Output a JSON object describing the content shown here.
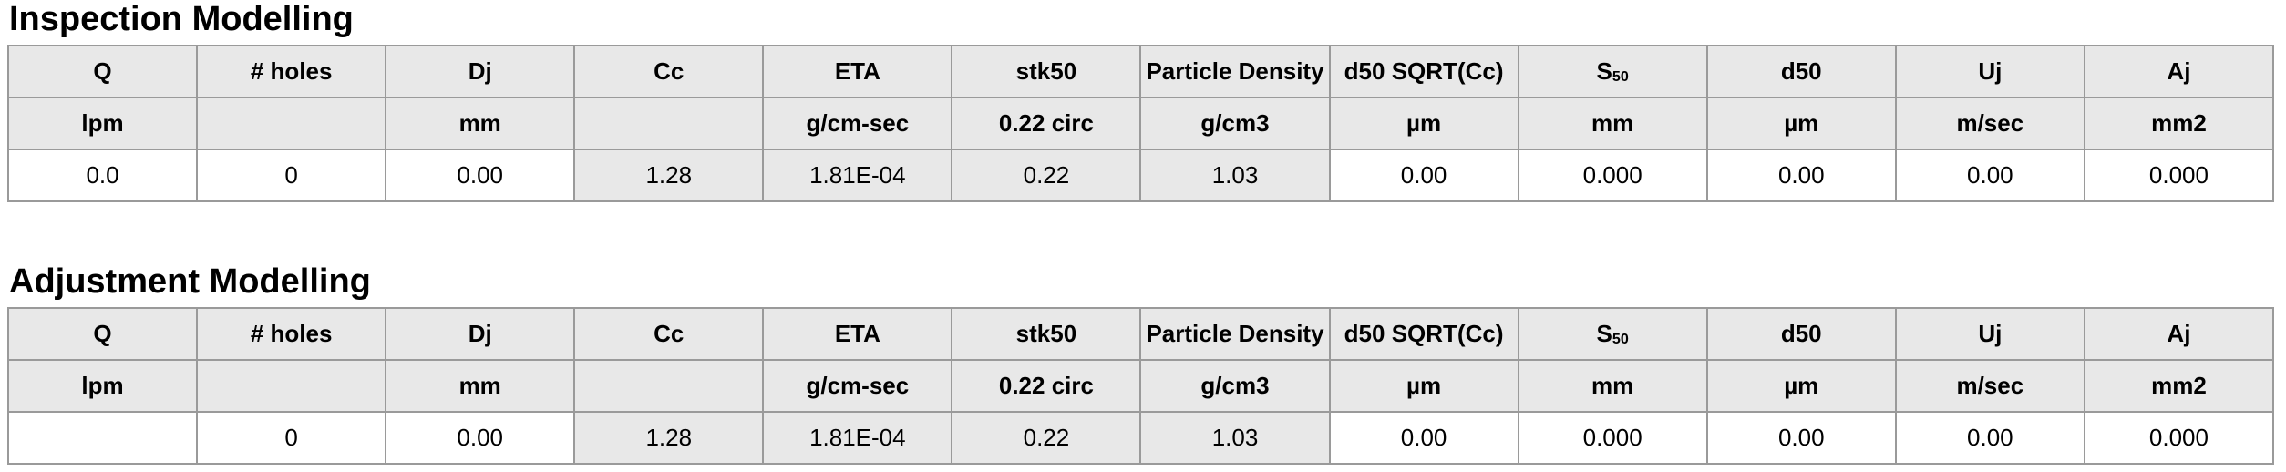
{
  "colors": {
    "cell_shaded_bg": "#e8e8e8",
    "cell_input_bg": "#ffffff",
    "border": "#9a9a9a",
    "text": "#000000"
  },
  "columns": [
    {
      "key": "q",
      "header": "Q",
      "unit": "lpm"
    },
    {
      "key": "num-holes",
      "header": "# holes",
      "unit": ""
    },
    {
      "key": "dj",
      "header": "Dj",
      "unit": "mm"
    },
    {
      "key": "cc",
      "header": "Cc",
      "unit": ""
    },
    {
      "key": "eta",
      "header": "ETA",
      "unit": "g/cm-sec"
    },
    {
      "key": "stk50",
      "header": "stk50",
      "unit": "0.22 circ"
    },
    {
      "key": "particle-density",
      "header": "Particle Density",
      "unit": "g/cm3"
    },
    {
      "key": "d50-sqrt-cc",
      "header": "d50 SQRT(Cc)",
      "unit": "µm"
    },
    {
      "key": "s50",
      "header": "S",
      "header_sub": "50",
      "unit": "mm"
    },
    {
      "key": "d50",
      "header": "d50",
      "unit": "µm"
    },
    {
      "key": "uj",
      "header": "Uj",
      "unit": "m/sec"
    },
    {
      "key": "aj",
      "header": "Aj",
      "unit": "mm2"
    }
  ],
  "tables": [
    {
      "title": "Inspection Modelling",
      "values": [
        "0.0",
        "0",
        "0.00",
        "1.28",
        "1.81E-04",
        "0.22",
        "1.03",
        "0.00",
        "0.000",
        "0.00",
        "0.00",
        "0.000"
      ],
      "shaded": [
        false,
        false,
        false,
        true,
        true,
        true,
        true,
        false,
        false,
        false,
        false,
        false
      ]
    },
    {
      "title": "Adjustment Modelling",
      "values": [
        "",
        "0",
        "0.00",
        "1.28",
        "1.81E-04",
        "0.22",
        "1.03",
        "0.00",
        "0.000",
        "0.00",
        "0.00",
        "0.000"
      ],
      "shaded": [
        false,
        false,
        false,
        true,
        true,
        true,
        true,
        false,
        false,
        false,
        false,
        false
      ]
    }
  ]
}
